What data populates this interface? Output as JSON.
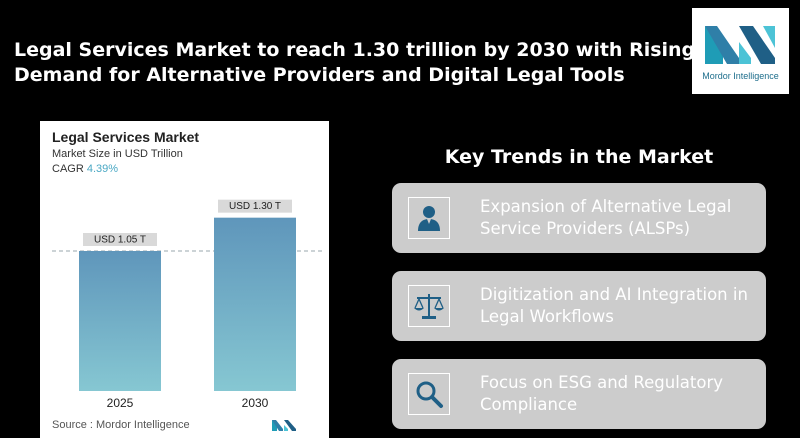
{
  "headline": {
    "line1": "Legal Services Market to reach 1.30 trillion by 2030 with Rising",
    "line2": "Demand for Alternative Providers and Digital Legal Tools"
  },
  "logo": {
    "text": "Mordor Intelligence"
  },
  "chart_panel": {
    "title": "Legal Services Market",
    "subtitle": "Market Size in USD Trillion",
    "cagr_label": "CAGR",
    "cagr_value": "4.39%",
    "source": "Source : Mordor Intelligence"
  },
  "chart_data": {
    "type": "bar",
    "title": "Legal Services Market",
    "ylabel": "Market Size in USD Trillion",
    "categories": [
      "2025",
      "2030"
    ],
    "values": [
      1.05,
      1.3
    ],
    "data_labels": [
      "USD 1.05 T",
      "USD 1.30 T"
    ],
    "ylim": [
      0,
      1.35
    ],
    "grid": false,
    "colors": {
      "bar_top": "#5f96bb",
      "bar_bottom": "#86c7d2",
      "label_bg": "#d9d9d9",
      "reference_line": "#9aa7ad"
    }
  },
  "trends": {
    "title": "Key Trends in the Market",
    "items": [
      {
        "label": "Expansion of Alternative Legal Service Providers (ALSPs)",
        "icon": "person-icon"
      },
      {
        "label": "Digitization and AI Integration in Legal Workflows",
        "icon": "scales-icon"
      },
      {
        "label": "Focus on ESG and Regulatory Compliance",
        "icon": "magnifier-icon"
      }
    ]
  },
  "colors": {
    "background": "#000000",
    "card": "#cccccc",
    "icon_blue": "#1f5f86",
    "accent": "#4aa8c4"
  }
}
